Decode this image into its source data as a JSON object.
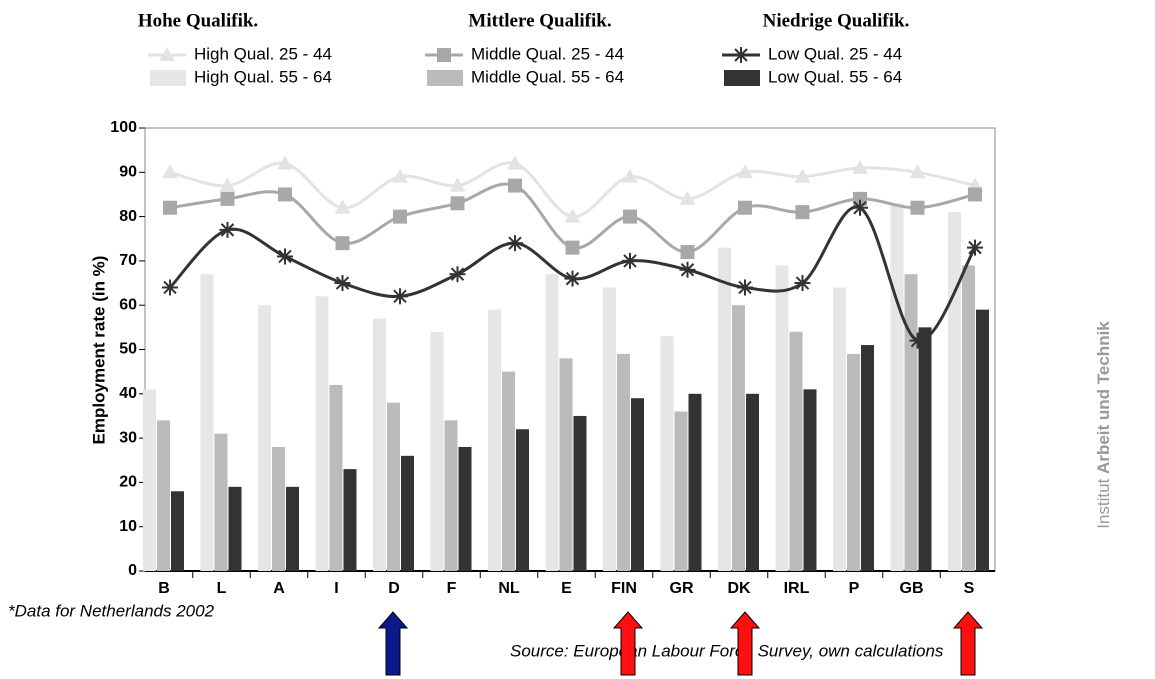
{
  "chart_data": {
    "type": "bar-line",
    "y_label": "Employment rate (in %)",
    "legend_groups": [
      "Hohe Qualifik.",
      "Mittlere Qualifik.",
      "Niedrige Qualifik."
    ],
    "note": "*Data for Netherlands 2002",
    "source": "Source: European Labour Force Survey, own calculations",
    "side_label": [
      "Institut",
      "Arbeit und Technik"
    ],
    "categories": [
      "B",
      "L",
      "A",
      "I",
      "D",
      "F",
      "NL",
      "E",
      "FIN",
      "GR",
      "DK",
      "IRL",
      "P",
      "GB",
      "S"
    ],
    "ylim": [
      0,
      100
    ],
    "yticks": [
      0,
      10,
      20,
      30,
      40,
      50,
      60,
      70,
      80,
      90,
      100
    ],
    "series": [
      {
        "name": "High Qual. 25 - 44",
        "kind": "line",
        "marker": "triangle",
        "color": "#e3e3e3",
        "values": [
          90,
          87,
          92,
          82,
          89,
          87,
          92,
          80,
          89,
          84,
          90,
          89,
          91,
          90,
          87
        ]
      },
      {
        "name": "Middle Qual. 25 - 44",
        "kind": "line",
        "marker": "x",
        "color": "#a8a8a8",
        "values": [
          82,
          84,
          85,
          74,
          80,
          83,
          87,
          73,
          80,
          72,
          82,
          81,
          84,
          82,
          85
        ]
      },
      {
        "name": "Low Qual. 25 - 44",
        "kind": "line",
        "marker": "star",
        "color": "#333333",
        "values": [
          64,
          77,
          71,
          65,
          62,
          67,
          74,
          66,
          70,
          68,
          64,
          65,
          82,
          52,
          73
        ]
      },
      {
        "name": "High Qual. 55 - 64",
        "kind": "bar",
        "color": "#e6e6e6",
        "values": [
          41,
          67,
          60,
          62,
          57,
          54,
          59,
          67,
          64,
          53,
          73,
          69,
          64,
          83,
          81
        ]
      },
      {
        "name": "Middle Qual. 55 - 64",
        "kind": "bar",
        "color": "#bbbbbb",
        "values": [
          34,
          31,
          28,
          42,
          38,
          34,
          45,
          48,
          49,
          36,
          60,
          54,
          49,
          67,
          69
        ]
      },
      {
        "name": "Low Qual. 55 - 64",
        "kind": "bar",
        "color": "#333333",
        "values": [
          18,
          19,
          19,
          23,
          26,
          28,
          32,
          35,
          39,
          40,
          40,
          41,
          51,
          55,
          59
        ]
      }
    ]
  }
}
